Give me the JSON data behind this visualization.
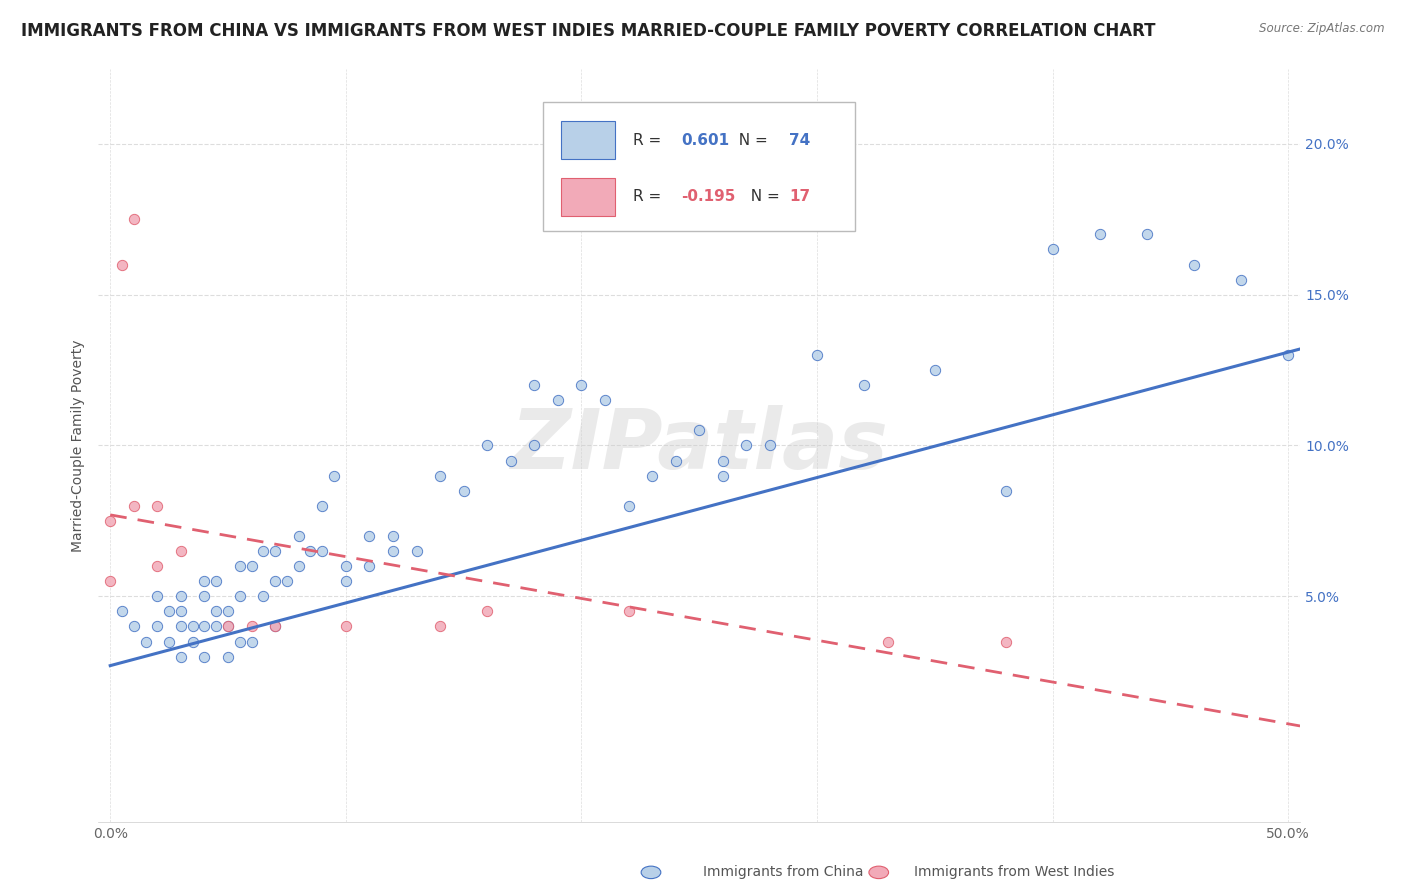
{
  "title": "IMMIGRANTS FROM CHINA VS IMMIGRANTS FROM WEST INDIES MARRIED-COUPLE FAMILY POVERTY CORRELATION CHART",
  "source": "Source: ZipAtlas.com",
  "ylabel": "Married-Couple Family Poverty",
  "xlim": [
    -0.005,
    0.505
  ],
  "ylim": [
    -0.025,
    0.225
  ],
  "xticks": [
    0.0,
    0.1,
    0.2,
    0.3,
    0.4,
    0.5
  ],
  "xtick_labels": [
    "0.0%",
    "",
    "",
    "",
    "",
    "50.0%"
  ],
  "yticks": [
    0.0,
    0.05,
    0.1,
    0.15,
    0.2
  ],
  "ytick_labels_right": [
    "",
    "5.0%",
    "10.0%",
    "15.0%",
    "20.0%"
  ],
  "china_R": 0.601,
  "china_N": 74,
  "wi_R": -0.195,
  "wi_N": 17,
  "china_color": "#b8d0e8",
  "wi_color": "#f2aab8",
  "china_line_color": "#4472c4",
  "wi_line_color": "#e06070",
  "legend_label_china": "Immigrants from China",
  "legend_label_wi": "Immigrants from West Indies",
  "watermark": "ZIPatlas",
  "china_scatter_x": [
    0.005,
    0.01,
    0.015,
    0.02,
    0.02,
    0.025,
    0.025,
    0.03,
    0.03,
    0.03,
    0.03,
    0.035,
    0.035,
    0.04,
    0.04,
    0.04,
    0.04,
    0.045,
    0.045,
    0.045,
    0.05,
    0.05,
    0.05,
    0.055,
    0.055,
    0.055,
    0.06,
    0.06,
    0.065,
    0.065,
    0.07,
    0.07,
    0.07,
    0.075,
    0.08,
    0.08,
    0.085,
    0.09,
    0.09,
    0.095,
    0.1,
    0.1,
    0.11,
    0.11,
    0.12,
    0.12,
    0.13,
    0.14,
    0.15,
    0.16,
    0.17,
    0.18,
    0.19,
    0.2,
    0.21,
    0.22,
    0.23,
    0.24,
    0.25,
    0.26,
    0.27,
    0.28,
    0.3,
    0.32,
    0.35,
    0.38,
    0.4,
    0.42,
    0.44,
    0.46,
    0.48,
    0.5,
    0.26,
    0.18
  ],
  "china_scatter_y": [
    0.045,
    0.04,
    0.035,
    0.04,
    0.05,
    0.035,
    0.045,
    0.03,
    0.04,
    0.05,
    0.045,
    0.035,
    0.04,
    0.03,
    0.04,
    0.05,
    0.055,
    0.04,
    0.045,
    0.055,
    0.03,
    0.04,
    0.045,
    0.035,
    0.05,
    0.06,
    0.035,
    0.06,
    0.05,
    0.065,
    0.04,
    0.055,
    0.065,
    0.055,
    0.06,
    0.07,
    0.065,
    0.065,
    0.08,
    0.09,
    0.055,
    0.06,
    0.07,
    0.06,
    0.065,
    0.07,
    0.065,
    0.09,
    0.085,
    0.1,
    0.095,
    0.1,
    0.115,
    0.12,
    0.115,
    0.08,
    0.09,
    0.095,
    0.105,
    0.09,
    0.1,
    0.1,
    0.13,
    0.12,
    0.125,
    0.085,
    0.165,
    0.17,
    0.17,
    0.16,
    0.155,
    0.13,
    0.095,
    0.12
  ],
  "wi_scatter_x": [
    0.0,
    0.0,
    0.005,
    0.01,
    0.01,
    0.02,
    0.02,
    0.03,
    0.05,
    0.06,
    0.07,
    0.1,
    0.14,
    0.16,
    0.22,
    0.33,
    0.38
  ],
  "wi_scatter_y": [
    0.055,
    0.075,
    0.16,
    0.175,
    0.08,
    0.08,
    0.06,
    0.065,
    0.04,
    0.04,
    0.04,
    0.04,
    0.04,
    0.045,
    0.045,
    0.035,
    0.035
  ],
  "china_trendline_x": [
    0.0,
    0.505
  ],
  "china_trendline_y": [
    0.027,
    0.132
  ],
  "wi_trendline_x": [
    0.0,
    0.505
  ],
  "wi_trendline_y": [
    0.077,
    0.007
  ],
  "background_color": "#ffffff",
  "grid_color": "#dddddd",
  "title_fontsize": 12,
  "axis_label_fontsize": 10,
  "tick_fontsize": 10
}
